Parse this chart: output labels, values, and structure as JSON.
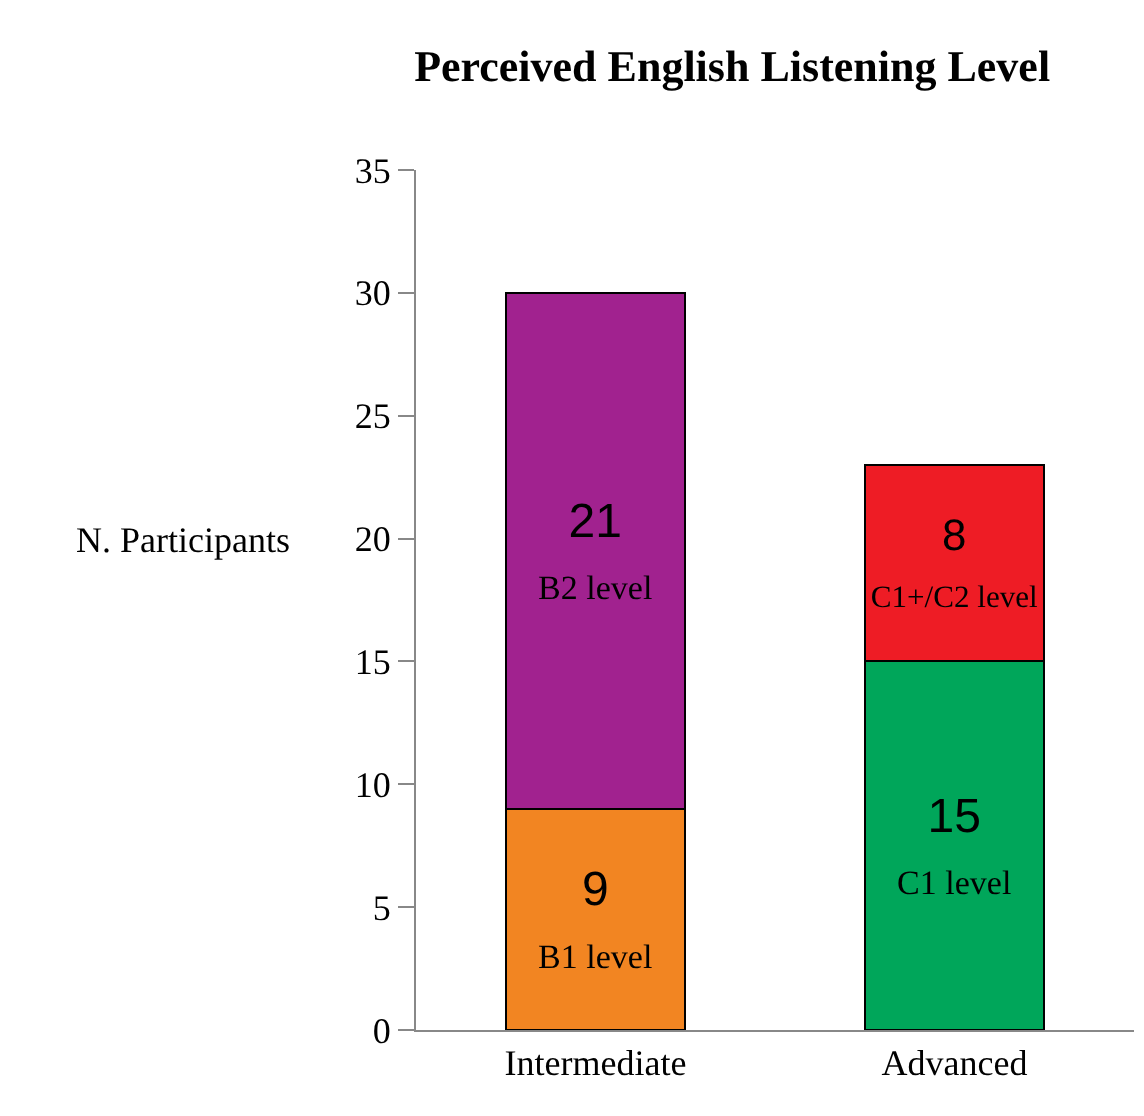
{
  "chart_data": {
    "type": "bar",
    "title": "Perceived English Listening Level",
    "ylabel": "N. Participants",
    "categories": [
      "Intermediate",
      "Advanced"
    ],
    "stacked": true,
    "series": [
      {
        "name": "B1 level",
        "color": "#f28522",
        "values": [
          9,
          null
        ]
      },
      {
        "name": "B2 level",
        "color": "#a1228f",
        "values": [
          21,
          null
        ]
      },
      {
        "name": "C1 level",
        "color": "#00a65a",
        "values": [
          null,
          15
        ]
      },
      {
        "name": "C1+/C2 level",
        "color": "#ee1c25",
        "values": [
          null,
          8
        ]
      }
    ],
    "ylim": [
      0,
      35
    ],
    "yticks": [
      0,
      5,
      10,
      15,
      20,
      25,
      30,
      35
    ],
    "data_labels": true,
    "grid": false,
    "legend": false
  }
}
